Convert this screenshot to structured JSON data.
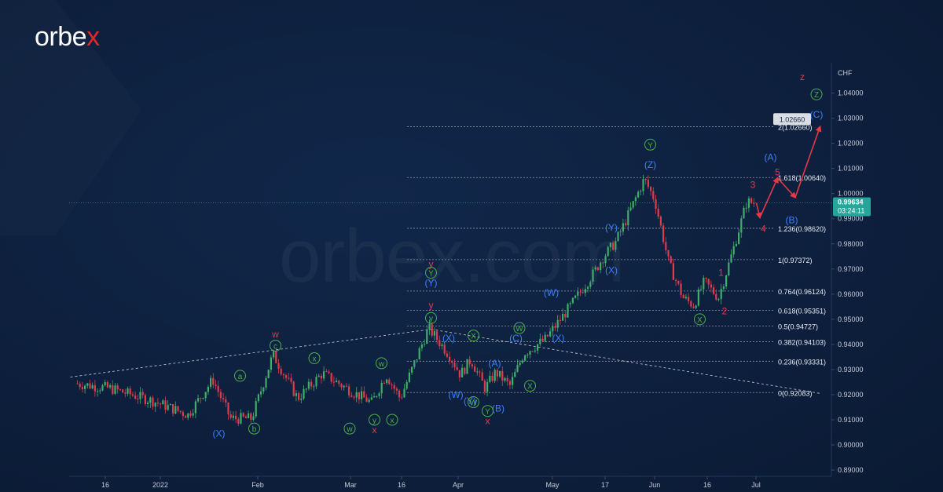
{
  "brand": {
    "logo_main": "orbe",
    "logo_x": "x",
    "watermark": "orbex.com"
  },
  "colors": {
    "background": "#0d1f3c",
    "candle_up": "#3fae68",
    "candle_down": "#e03b4a",
    "wave_red": "#e63946",
    "wave_blue": "#3d7fff",
    "wave_green": "#4caf50",
    "fib_line": "#8c96a8",
    "price_line": "#26a69a",
    "axis_text": "#c6ccd8"
  },
  "chart_data": {
    "type": "line",
    "instrument_price_axis_unit": "CHF",
    "current_price_label": "0.99634",
    "countdown_label": "03:24:11",
    "target_label": "1.02660",
    "price_axis_ticks": [
      "1.04000",
      "1.03000",
      "1.02000",
      "1.01000",
      "1.00000",
      "0.99000",
      "0.98000",
      "0.97000",
      "0.96000",
      "0.95000",
      "0.94000",
      "0.93000",
      "0.92000",
      "0.91000",
      "0.90000",
      "0.89000"
    ],
    "ylim": [
      0.8875,
      1.0505
    ],
    "time_axis_ticks": [
      "16",
      "2022",
      "Feb",
      "Mar",
      "16",
      "Apr",
      "May",
      "17",
      "Jun",
      "16",
      "Jul"
    ],
    "fib_levels": [
      {
        "label": "2(1.02660)",
        "value": 1.0266
      },
      {
        "label": "1.618(1.00640)",
        "value": 1.0064
      },
      {
        "label": "1.236(0.98620)",
        "value": 0.9862
      },
      {
        "label": "1(0.97372)",
        "value": 0.97372
      },
      {
        "label": "0.764(0.96124)",
        "value": 0.96124
      },
      {
        "label": "0.618(0.95351)",
        "value": 0.95351
      },
      {
        "label": "0.5(0.94727)",
        "value": 0.94727
      },
      {
        "label": "0.382(0.94103)",
        "value": 0.94103
      },
      {
        "label": "0.236(0.93331)",
        "value": 0.93331
      },
      {
        "label": "0(0.92083)",
        "value": 0.92083
      }
    ],
    "price_path": [
      [
        "Dec-06",
        0.9245
      ],
      [
        "Dec-16",
        0.9225
      ],
      [
        "Dec-28",
        0.9175
      ],
      [
        "Jan-07",
        0.912
      ],
      [
        "Jan-14",
        0.926
      ],
      [
        "Jan-19",
        0.9105
      ],
      [
        "Jan-25",
        0.9105
      ],
      [
        "Jan-31",
        0.936
      ],
      [
        "Feb-07",
        0.9185
      ],
      [
        "Feb-14",
        0.9285
      ],
      [
        "Feb-22",
        0.9215
      ],
      [
        "Feb-28",
        0.9168
      ],
      [
        "Mar-04",
        0.928
      ],
      [
        "Mar-08",
        0.9185
      ],
      [
        "Mar-16",
        0.9465
      ],
      [
        "Mar-22",
        0.9355
      ],
      [
        "Mar-25",
        0.928
      ],
      [
        "Mar-28",
        0.934
      ],
      [
        "Apr-01",
        0.9225
      ],
      [
        "Apr-04",
        0.929
      ],
      [
        "Apr-08",
        0.9235
      ],
      [
        "Apr-12",
        0.9365
      ],
      [
        "Apr-18",
        0.942
      ],
      [
        "Apr-25",
        0.955
      ],
      [
        "May-02",
        0.969
      ],
      [
        "May-04",
        0.974
      ],
      [
        "May-08",
        0.981
      ],
      [
        "May-11",
        0.99
      ],
      [
        "May-16",
        1.0058
      ],
      [
        "May-19",
        0.9975
      ],
      [
        "May-23",
        0.972
      ],
      [
        "May-27",
        0.9585
      ],
      [
        "May-30",
        0.9555
      ],
      [
        "Jun-02",
        0.965
      ],
      [
        "Jun-06",
        0.9585
      ],
      [
        "Jun-10",
        0.977
      ],
      [
        "Jun-14",
        0.9968
      ],
      [
        "Jun-16",
        0.9963
      ]
    ],
    "projection_path": [
      [
        "Jun-16",
        0.9963
      ],
      [
        "Jun-17",
        0.9905
      ],
      [
        "Jun-22",
        1.0062
      ],
      [
        "Jun-27",
        0.9985
      ],
      [
        "Jul-04",
        1.0266
      ]
    ],
    "trendlines": [
      {
        "from": [
          "Dec-04",
          0.927
        ],
        "to": [
          "Mar-16",
          0.946
        ]
      },
      {
        "from": [
          "Mar-16",
          0.946
        ],
        "to": [
          "Jul-04",
          0.9205
        ]
      }
    ],
    "wave_labels": [
      {
        "text": "w",
        "color": "red",
        "circle": false,
        "at": [
          "Jan-31",
          0.944
        ]
      },
      {
        "text": "y",
        "color": "red",
        "circle": false,
        "at": [
          "Mar-16",
          0.972
        ]
      },
      {
        "text": "y",
        "color": "red",
        "circle": false,
        "at": [
          "Mar-16",
          0.9555
        ]
      },
      {
        "text": "x",
        "color": "red",
        "circle": false,
        "at": [
          "Feb-28",
          0.906
        ]
      },
      {
        "text": "x",
        "color": "red",
        "circle": false,
        "at": [
          "Apr-01",
          0.9095
        ]
      },
      {
        "text": "z",
        "color": "red",
        "circle": false,
        "at": [
          "Jun-29",
          1.0465
        ]
      },
      {
        "text": "1",
        "color": "red",
        "circle": false,
        "at": [
          "Jun-06",
          0.9685
        ]
      },
      {
        "text": "2",
        "color": "red",
        "circle": false,
        "at": [
          "Jun-07",
          0.9532
        ]
      },
      {
        "text": "3",
        "color": "red",
        "circle": false,
        "at": [
          "Jun-15",
          1.0035
        ]
      },
      {
        "text": "4",
        "color": "red",
        "circle": false,
        "at": [
          "Jun-18",
          0.986
        ]
      },
      {
        "text": "5",
        "color": "red",
        "circle": false,
        "at": [
          "Jun-22",
          1.0085
        ]
      },
      {
        "text": "(X)",
        "color": "blue",
        "circle": false,
        "at": [
          "Jan-15",
          0.9045
        ]
      },
      {
        "text": "(X)",
        "color": "blue",
        "circle": false,
        "at": [
          "Mar-21",
          0.9425
        ]
      },
      {
        "text": "(W)",
        "color": "blue",
        "circle": false,
        "at": [
          "Mar-23",
          0.92
        ]
      },
      {
        "text": "(Y)",
        "color": "blue",
        "circle": false,
        "at": [
          "Mar-27",
          0.9175
        ]
      },
      {
        "text": "(A)",
        "color": "blue",
        "circle": false,
        "at": [
          "Apr-03",
          0.9325
        ]
      },
      {
        "text": "(B)",
        "color": "blue",
        "circle": false,
        "at": [
          "Apr-04",
          0.9145
        ]
      },
      {
        "text": "(C)",
        "color": "blue",
        "circle": false,
        "at": [
          "Apr-09",
          0.9425
        ]
      },
      {
        "text": "(Y)",
        "color": "blue",
        "circle": false,
        "at": [
          "Mar-16",
          0.9645
        ]
      },
      {
        "text": "(W)",
        "color": "blue",
        "circle": false,
        "at": [
          "Apr-19",
          0.9605
        ]
      },
      {
        "text": "(X)",
        "color": "blue",
        "circle": false,
        "at": [
          "Apr-21",
          0.9425
        ]
      },
      {
        "text": "(Y)",
        "color": "blue",
        "circle": false,
        "at": [
          "May-06",
          0.9865
        ]
      },
      {
        "text": "(X)",
        "color": "blue",
        "circle": false,
        "at": [
          "May-06",
          0.9695
        ]
      },
      {
        "text": "(Z)",
        "color": "blue",
        "circle": false,
        "at": [
          "May-17",
          1.0115
        ]
      },
      {
        "text": "(A)",
        "color": "blue",
        "circle": false,
        "at": [
          "Jun-20",
          1.0145
        ]
      },
      {
        "text": "(B)",
        "color": "blue",
        "circle": false,
        "at": [
          "Jun-26",
          0.9895
        ]
      },
      {
        "text": "(C)",
        "color": "blue",
        "circle": false,
        "at": [
          "Jul-03",
          1.0315
        ]
      },
      {
        "text": "a",
        "color": "green",
        "circle": true,
        "at": [
          "Jan-21",
          0.9275
        ]
      },
      {
        "text": "b",
        "color": "green",
        "circle": true,
        "at": [
          "Jan-25",
          0.9065
        ]
      },
      {
        "text": "c",
        "color": "green",
        "circle": true,
        "at": [
          "Jan-31",
          0.9395
        ]
      },
      {
        "text": "x",
        "color": "green",
        "circle": true,
        "at": [
          "Feb-11",
          0.9345
        ]
      },
      {
        "text": "w",
        "color": "green",
        "circle": true,
        "at": [
          "Feb-21",
          0.9065
        ]
      },
      {
        "text": "w",
        "color": "green",
        "circle": true,
        "at": [
          "Mar-02",
          0.9325
        ]
      },
      {
        "text": "y",
        "color": "green",
        "circle": true,
        "at": [
          "Feb-28",
          0.91
        ]
      },
      {
        "text": "x",
        "color": "green",
        "circle": true,
        "at": [
          "Mar-05",
          0.91
        ]
      },
      {
        "text": "Y",
        "color": "green",
        "circle": true,
        "at": [
          "Mar-16",
          0.9685
        ]
      },
      {
        "text": "y",
        "color": "green",
        "circle": true,
        "at": [
          "Mar-16",
          0.9505
        ]
      },
      {
        "text": "X",
        "color": "green",
        "circle": true,
        "at": [
          "Mar-28",
          0.9435
        ]
      },
      {
        "text": "W",
        "color": "green",
        "circle": true,
        "at": [
          "Mar-28",
          0.917
        ]
      },
      {
        "text": "Y",
        "color": "green",
        "circle": true,
        "at": [
          "Apr-01",
          0.9135
        ]
      },
      {
        "text": "W",
        "color": "green",
        "circle": true,
        "at": [
          "Apr-10",
          0.9465
        ]
      },
      {
        "text": "X",
        "color": "green",
        "circle": true,
        "at": [
          "Apr-13",
          0.9235
        ]
      },
      {
        "text": "Y",
        "color": "green",
        "circle": true,
        "at": [
          "May-17",
          1.0195
        ]
      },
      {
        "text": "X",
        "color": "green",
        "circle": true,
        "at": [
          "May-31",
          0.95
        ]
      },
      {
        "text": "Z",
        "color": "green",
        "circle": true,
        "at": [
          "Jul-03",
          1.0395
        ]
      }
    ]
  }
}
